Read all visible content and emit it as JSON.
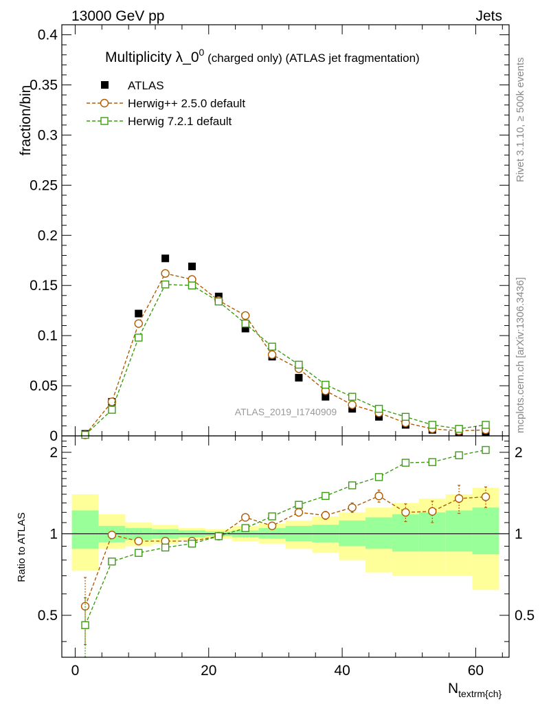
{
  "header": {
    "left": "13000 GeV pp",
    "right": "Jets"
  },
  "side_text": {
    "rivet": "Rivet 3.1.10, ≥ 500k events",
    "mcplots": "mcplots.cern.ch [arXiv:1306.3436]"
  },
  "colors": {
    "atlas": "#000000",
    "herwigpp": "#b05a00",
    "herwig7": "#3a9a10",
    "band_yellow": "#ffff99",
    "band_green": "#99ff99"
  },
  "chart_data": [
    {
      "type": "scatter",
      "panel": "main",
      "title_main": "Multiplicity λ_0",
      "title_sup": "0",
      "title_rest": " (charged only) (ATLAS jet fragmentation)",
      "ylabel": "fraction/bin",
      "xlabel": "N",
      "xlabel_sub": "textrm{ch}",
      "xlim": [
        -2,
        65
      ],
      "ylim": [
        0,
        0.41
      ],
      "yticks": [
        0,
        0.05,
        0.1,
        0.15,
        0.2,
        0.25,
        0.3,
        0.35,
        0.4
      ],
      "ytick_labels": [
        "0",
        "0.05",
        "0.1",
        "0.15",
        "0.2",
        "0.25",
        "0.3",
        "0.35",
        "0.4"
      ],
      "watermark": "ATLAS_2019_I1740909",
      "x": [
        1.5,
        5.5,
        9.5,
        13.5,
        17.5,
        21.5,
        25.5,
        29.5,
        33.5,
        37.5,
        41.5,
        45.5,
        49.5,
        53.5,
        57.5,
        61.5
      ],
      "series": [
        {
          "name": "ATLAS",
          "marker": "filled-square",
          "values": [
            0.002,
            0.034,
            0.122,
            0.177,
            0.169,
            0.139,
            0.107,
            0.079,
            0.058,
            0.039,
            0.027,
            0.019,
            0.011,
            0.006,
            0.004,
            0.004
          ]
        },
        {
          "name": "Herwig++ 2.5.0 default",
          "marker": "open-circle",
          "values": [
            0.001,
            0.034,
            0.112,
            0.162,
            0.156,
            0.135,
            0.12,
            0.081,
            0.067,
            0.045,
            0.031,
            0.023,
            0.013,
            0.007,
            0.005,
            0.006
          ]
        },
        {
          "name": "Herwig 7.2.1 default",
          "marker": "open-square",
          "values": [
            0.001,
            0.026,
            0.098,
            0.151,
            0.15,
            0.134,
            0.112,
            0.089,
            0.071,
            0.051,
            0.039,
            0.027,
            0.019,
            0.011,
            0.007,
            0.011
          ]
        }
      ]
    },
    {
      "type": "scatter",
      "panel": "ratio",
      "ylabel": "Ratio to ATLAS",
      "xlim": [
        -2,
        65
      ],
      "ylim": [
        0.35,
        2.3
      ],
      "yticks": [
        0.5,
        1,
        2
      ],
      "ytick_labels": [
        "0.5",
        "1",
        "2"
      ],
      "xticks": [
        0,
        20,
        40,
        60
      ],
      "xtick_labels": [
        "0",
        "20",
        "40",
        "60"
      ],
      "bins": [
        [
          -0.5,
          3.5
        ],
        [
          3.5,
          7.5
        ],
        [
          7.5,
          11.5
        ],
        [
          11.5,
          15.5
        ],
        [
          15.5,
          19.5
        ],
        [
          19.5,
          23.5
        ],
        [
          23.5,
          27.5
        ],
        [
          27.5,
          31.5
        ],
        [
          31.5,
          35.5
        ],
        [
          35.5,
          39.5
        ],
        [
          39.5,
          43.5
        ],
        [
          43.5,
          47.5
        ],
        [
          47.5,
          51.5
        ],
        [
          51.5,
          55.5
        ],
        [
          55.5,
          59.5
        ],
        [
          59.5,
          63.5
        ]
      ],
      "band_yellow": [
        [
          0.73,
          1.4
        ],
        [
          0.88,
          1.18
        ],
        [
          0.9,
          1.1
        ],
        [
          0.92,
          1.08
        ],
        [
          0.95,
          1.05
        ],
        [
          0.96,
          1.04
        ],
        [
          0.94,
          1.07
        ],
        [
          0.92,
          1.09
        ],
        [
          0.88,
          1.12
        ],
        [
          0.85,
          1.16
        ],
        [
          0.8,
          1.2
        ],
        [
          0.72,
          1.25
        ],
        [
          0.7,
          1.3
        ],
        [
          0.7,
          1.35
        ],
        [
          0.7,
          1.4
        ],
        [
          0.62,
          1.48
        ]
      ],
      "band_green": [
        [
          0.88,
          1.22
        ],
        [
          0.93,
          1.07
        ],
        [
          0.95,
          1.05
        ],
        [
          0.96,
          1.04
        ],
        [
          0.97,
          1.03
        ],
        [
          0.98,
          1.02
        ],
        [
          0.97,
          1.03
        ],
        [
          0.96,
          1.05
        ],
        [
          0.94,
          1.07
        ],
        [
          0.93,
          1.08
        ],
        [
          0.9,
          1.12
        ],
        [
          0.88,
          1.15
        ],
        [
          0.86,
          1.18
        ],
        [
          0.86,
          1.2
        ],
        [
          0.86,
          1.22
        ],
        [
          0.84,
          1.25
        ]
      ],
      "series": [
        {
          "name": "Herwig++ 2.5.0 default",
          "marker": "open-circle",
          "values": [
            0.54,
            0.99,
            0.94,
            0.94,
            0.94,
            0.98,
            1.15,
            1.07,
            1.2,
            1.17,
            1.25,
            1.38,
            1.2,
            1.21,
            1.35,
            1.37
          ],
          "errors": [
            0.15,
            0.03,
            0.01,
            0.01,
            0.01,
            0.01,
            0.02,
            0.02,
            0.03,
            0.04,
            0.05,
            0.07,
            0.09,
            0.11,
            0.16,
            0.12
          ]
        },
        {
          "name": "Herwig 7.2.1 default",
          "marker": "open-square",
          "values": [
            0.46,
            0.79,
            0.85,
            0.89,
            0.92,
            0.98,
            1.05,
            1.16,
            1.28,
            1.38,
            1.51,
            1.62,
            1.83,
            1.84,
            1.95,
            2.04
          ],
          "errors": [
            0.12,
            0.02,
            0.01,
            0.01,
            0.01,
            0.01,
            0.01,
            0.02,
            0.02,
            0.03,
            0.03,
            0.03,
            0.03,
            0.04,
            0.05,
            0.04
          ]
        }
      ]
    }
  ]
}
